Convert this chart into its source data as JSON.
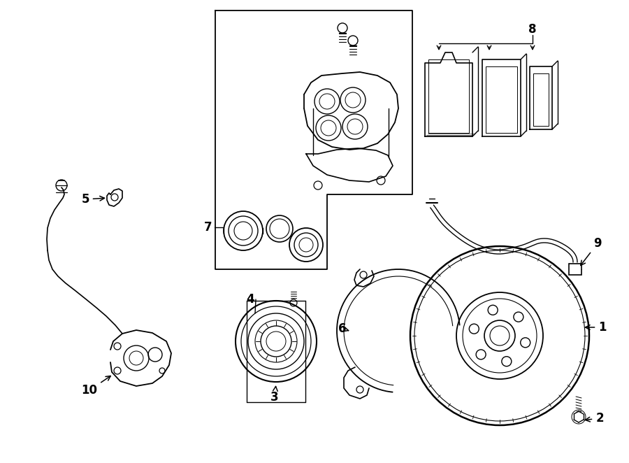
{
  "background_color": "#ffffff",
  "line_color": "#000000",
  "figsize": [
    9.0,
    6.62
  ],
  "dpi": 100,
  "lbox": [
    308,
    278,
    468,
    648
  ],
  "ubox": [
    308,
    15,
    590,
    278
  ]
}
